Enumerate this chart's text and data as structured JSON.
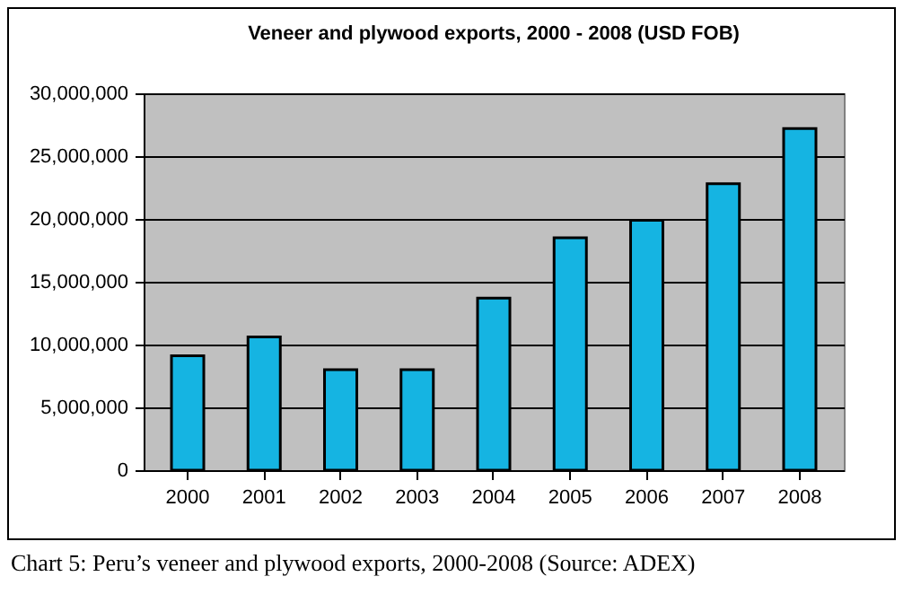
{
  "chart_data": {
    "type": "bar",
    "title": "Veneer and plywood exports, 2000 - 2008 (USD FOB)",
    "categories": [
      "2000",
      "2001",
      "2002",
      "2003",
      "2004",
      "2005",
      "2006",
      "2007",
      "2008"
    ],
    "values": [
      9100000,
      10600000,
      8000000,
      8000000,
      13700000,
      18500000,
      19900000,
      22800000,
      27200000
    ],
    "color": "#15b4e2",
    "ylim": [
      0,
      30000000
    ],
    "yticks": [
      0,
      {
        "value": 5000000,
        "label": "5,000,000"
      },
      {
        "value": 10000000,
        "label": "10,000,000"
      },
      {
        "value": 15000000,
        "label": "15,000,000"
      },
      {
        "value": 20000000,
        "label": "20,000,000"
      },
      {
        "value": 25000000,
        "label": "25,000,000"
      },
      {
        "value": 30000000,
        "label": "30,000,000"
      }
    ],
    "grid": "y",
    "annotations": [
      "Chart 5: Peru’s veneer and plywood exports, 2000-2008 (Source: ADEX)"
    ]
  }
}
